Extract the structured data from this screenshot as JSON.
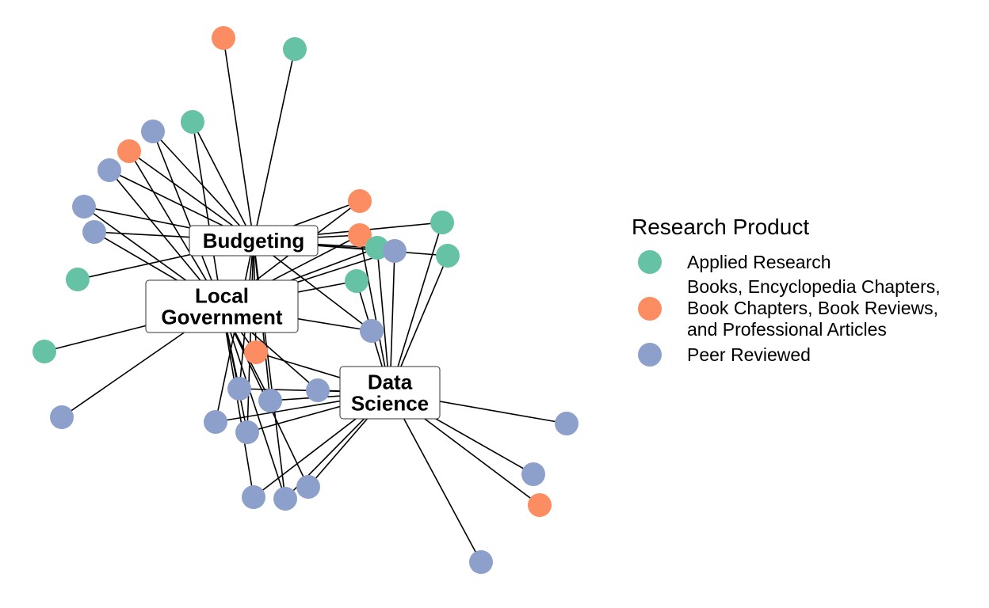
{
  "legend": {
    "title": "Research Product",
    "items": [
      {
        "key": "applied",
        "label": "Applied Research",
        "color": "#66c2a5"
      },
      {
        "key": "books",
        "label": "Books, Encyclopedia Chapters,\nBook Chapters, Book Reviews,\nand Professional Articles",
        "color": "#fc8d62"
      },
      {
        "key": "peer",
        "label": "Peer Reviewed",
        "color": "#8da0cb"
      }
    ]
  },
  "hubs": [
    {
      "id": "budgeting",
      "lines": [
        "Budgeting"
      ]
    },
    {
      "id": "local-government",
      "lines": [
        "Local",
        "Government"
      ]
    },
    {
      "id": "data-science",
      "lines": [
        "Data",
        "Science"
      ]
    }
  ]
}
